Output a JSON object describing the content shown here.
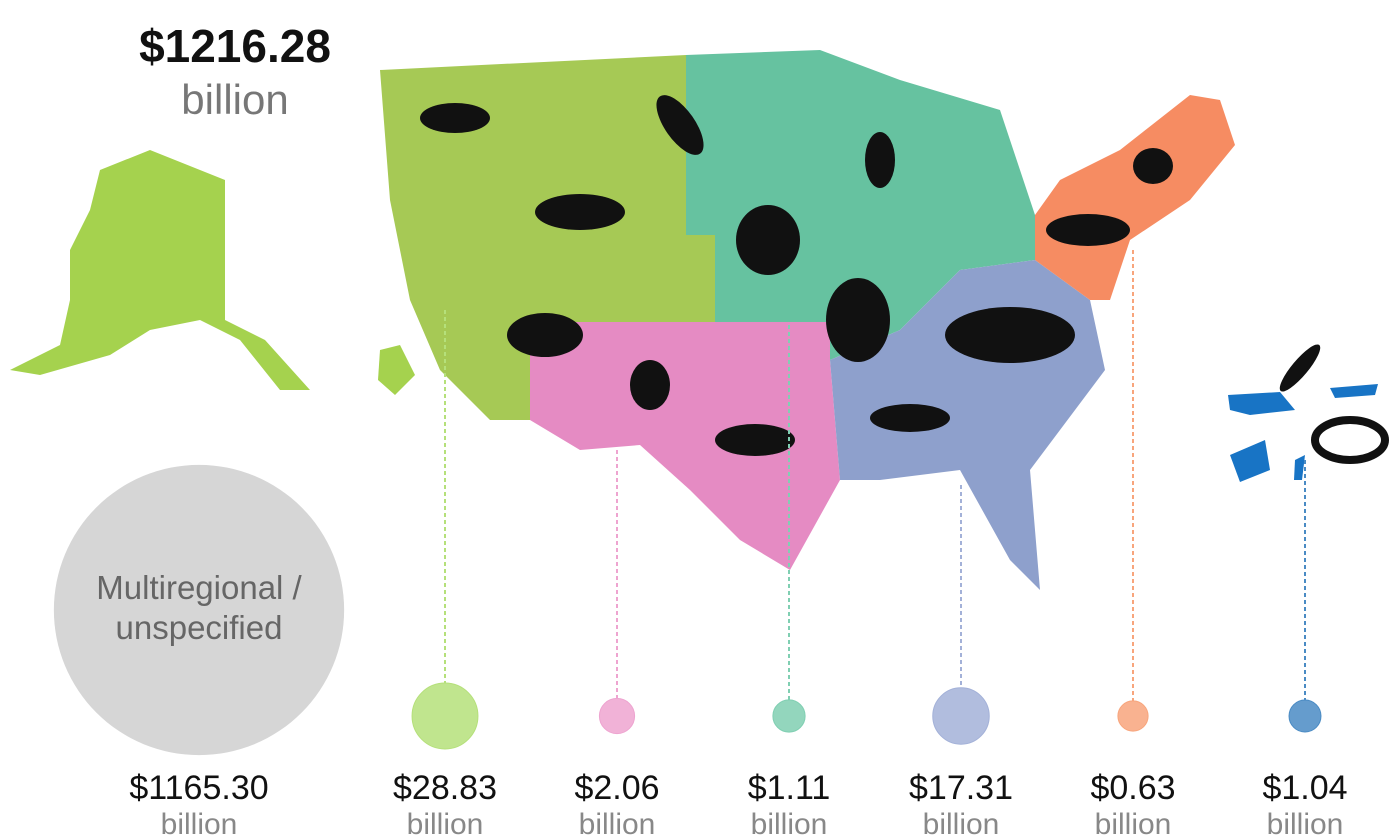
{
  "chart_data": {
    "type": "bubble",
    "total": 1216.28,
    "total_label": "$1216.28",
    "unit": "billion",
    "categories": [
      "Multiregional / unspecified",
      null,
      null,
      null,
      null,
      null,
      null
    ],
    "values": [
      1165.3,
      28.83,
      2.06,
      1.11,
      17.31,
      0.63,
      1.04
    ],
    "value_labels": [
      "$1165.30",
      "$28.83",
      "$2.06",
      "$1.11",
      "$17.31",
      "$0.63",
      "$1.04"
    ],
    "colors": [
      "#d6d6d6",
      "#b5e07a",
      "#eea4d0",
      "#80cfb2",
      "#a3b1d8",
      "#f8a57c",
      "#4a8bc4"
    ]
  }
}
